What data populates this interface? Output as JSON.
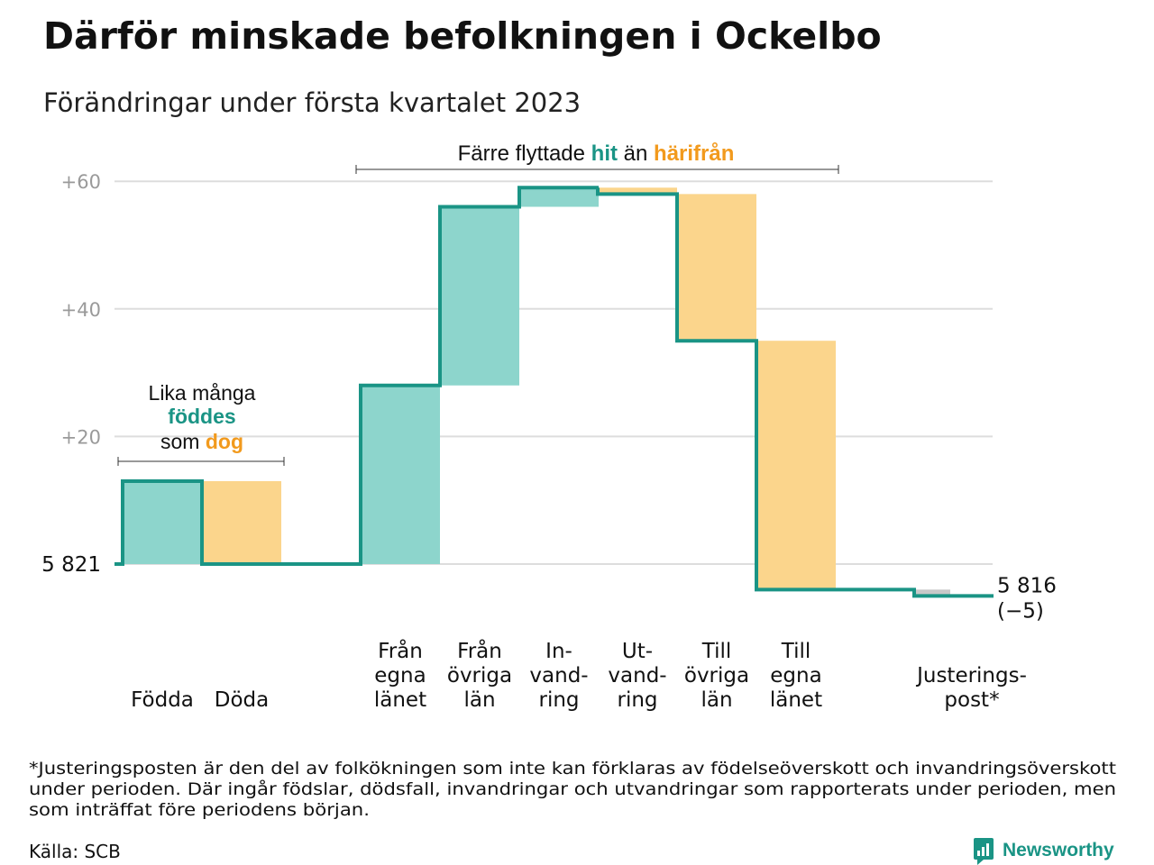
{
  "chart_data": {
    "type": "waterfall",
    "title": "Därför minskade befolkningen i Ockelbo",
    "subtitle": "Förändringar under första kvartalet 2023",
    "start_label": "5 821",
    "end_label": "5 816",
    "end_change": "(−5)",
    "yticks": [
      {
        "value": 60,
        "label": "+60"
      },
      {
        "value": 40,
        "label": "+40"
      },
      {
        "value": 20,
        "label": "+20"
      }
    ],
    "ylim": [
      -6,
      62
    ],
    "grid": true,
    "steps": [
      {
        "label": [
          "Födda"
        ],
        "delta": 13,
        "kind": "in",
        "group": 0
      },
      {
        "label": [
          "Döda"
        ],
        "delta": -13,
        "kind": "out",
        "group": 0
      },
      {
        "label": [
          "Från",
          "egna",
          "länet"
        ],
        "delta": 28,
        "kind": "in",
        "group": 1
      },
      {
        "label": [
          "Från",
          "övriga",
          "län"
        ],
        "delta": 28,
        "kind": "in",
        "group": 1
      },
      {
        "label": [
          "In-",
          "vand-",
          "ring"
        ],
        "delta": 3,
        "kind": "in",
        "group": 1
      },
      {
        "label": [
          "Ut-",
          "vand-",
          "ring"
        ],
        "delta": -1,
        "kind": "out",
        "group": 1
      },
      {
        "label": [
          "Till",
          "övriga",
          "län"
        ],
        "delta": -23,
        "kind": "out",
        "group": 1
      },
      {
        "label": [
          "Till",
          "egna",
          "länet"
        ],
        "delta": -39,
        "kind": "out",
        "group": 1
      },
      {
        "label": [
          "Justerings-",
          "post*"
        ],
        "delta": -1,
        "kind": "adj",
        "group": 2
      }
    ],
    "annotations": {
      "born_died": {
        "line1": "Lika många",
        "line2": "föddes",
        "line3_prefix": "som ",
        "line3_highlight": "dog"
      },
      "moved": {
        "prefix": "Färre flyttade ",
        "hit": "hit",
        "middle": " än ",
        "harifran": "härifrån"
      }
    }
  },
  "footnote": [
    "*Justeringsposten är den del av folkökningen som inte kan förklaras av födelseöverskott och invandringsöverskott",
    "under perioden. Där ingår födslar, dödsfall, invandringar och utvandringar som rapporterats under perioden, men",
    "som inträffat före periodens början."
  ],
  "source": "Källa: SCB",
  "brand": "Newsworthy",
  "colors": {
    "in": "#8dd5cc",
    "out": "#fbd58c",
    "adj": "#c8c8c8",
    "line": "#1a9485",
    "teal_text": "#1a9485",
    "orange_text": "#f29a1d",
    "grid": "#dddddd",
    "tick": "#9a9a9a"
  }
}
